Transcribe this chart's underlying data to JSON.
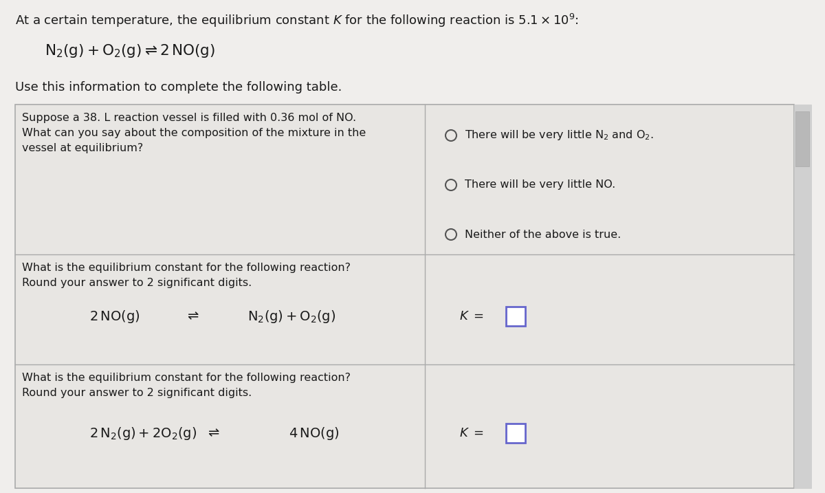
{
  "bg_color": "#f0eeec",
  "cell_bg": "#e8e6e3",
  "border_color": "#aaaaaa",
  "text_color": "#1a1a1a",
  "header_text": "At a certain temperature, the equilibrium constant $K$ for the following reaction is $5.1 \\times 10^9$:",
  "reaction_main": "$\\mathrm{N_2(g) + O_2(g) \\rightleftharpoons 2\\,NO(g)}$",
  "subtitle": "Use this information to complete the following table.",
  "row1_left_line1": "Suppose a 38. L reaction vessel is filled with 0.36 mol of NO.",
  "row1_left_line2": "What can you say about the composition of the mixture in the",
  "row1_left_line3": "vessel at equilibrium?",
  "row1_right_opt1": "There will be very little N$_2$ and O$_2$.",
  "row1_right_opt2": "There will be very little NO.",
  "row1_right_opt3": "Neither of the above is true.",
  "row2_left_line1": "What is the equilibrium constant for the following reaction?",
  "row2_left_line2": "Round your answer to 2 significant digits.",
  "row2_reaction_left": "$2\\,\\mathrm{NO(g)}$",
  "row2_reaction_arrow": "$\\rightleftharpoons$",
  "row2_reaction_right": "$\\mathrm{N_2(g)+O_2(g)}$",
  "row3_left_line1": "What is the equilibrium constant for the following reaction?",
  "row3_left_line2": "Round your answer to 2 significant digits.",
  "row3_reaction_left": "$2\\,\\mathrm{N_2(g)+2O_2(g)}$",
  "row3_reaction_arrow": "$\\rightleftharpoons$",
  "row3_reaction_right": "$4\\,\\mathrm{NO(g)}$",
  "input_box_color": "#6666cc",
  "font_size_header": 13.0,
  "font_size_body": 11.5,
  "font_size_reaction_main": 15.5,
  "font_size_reaction_row": 14.0
}
